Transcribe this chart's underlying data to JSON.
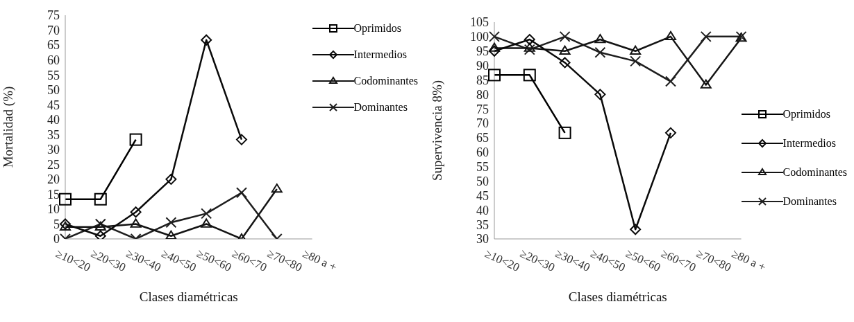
{
  "chart_data": [
    {
      "type": "line",
      "ylabel": "Mortalidad (%)",
      "xlabel": "Clases diamétricas",
      "categories": [
        "≥10<20",
        "≥20<30",
        "≥30<40",
        "≥40<50",
        "≥50<60",
        "≥60<70",
        "≥70<80",
        "≥80 a +"
      ],
      "ylim": [
        0,
        75
      ],
      "yticks": [
        0,
        5,
        10,
        15,
        20,
        25,
        30,
        35,
        40,
        45,
        50,
        55,
        60,
        65,
        70,
        75
      ],
      "grid": false,
      "legend": "top right",
      "line_style": "solid",
      "series": [
        {
          "name": "Oprimidos",
          "color": "#000000",
          "marker": "square",
          "values": [
            13.3,
            13.3,
            33.3,
            null,
            null,
            null,
            null,
            null
          ]
        },
        {
          "name": "Intermedios",
          "color": "#0a0a0a",
          "marker": "diamond",
          "values": [
            5,
            1,
            9,
            20,
            66.7,
            33.3,
            null,
            null
          ]
        },
        {
          "name": "Codominantes",
          "color": "#141414",
          "marker": "triangle",
          "values": [
            4,
            4,
            5,
            1,
            5,
            0,
            16.7,
            null
          ]
        },
        {
          "name": "Dominantes",
          "color": "#1e1e1e",
          "marker": "cross",
          "values": [
            0,
            5,
            0,
            5.5,
            8.5,
            15.5,
            0,
            null
          ]
        }
      ]
    },
    {
      "type": "line",
      "ylabel": "Supervivencia 8%)",
      "xlabel": "Clases diamétricas",
      "categories": [
        "≥10<20",
        "≥20<30",
        "≥30<40",
        "≥40<50",
        "≥50<60",
        "≥60<70",
        "≥70<80",
        "≥80 a +"
      ],
      "ylim": [
        30,
        105
      ],
      "yticks": [
        30,
        35,
        40,
        45,
        50,
        55,
        60,
        65,
        70,
        75,
        80,
        85,
        90,
        95,
        100,
        105
      ],
      "grid": false,
      "legend": "right",
      "line_style": "solid",
      "series": [
        {
          "name": "Oprimidos",
          "color": "#000000",
          "marker": "square",
          "values": [
            86.7,
            86.7,
            66.7,
            null,
            null,
            null,
            null,
            null
          ]
        },
        {
          "name": "Intermedios",
          "color": "#0a0a0a",
          "marker": "diamond",
          "values": [
            95,
            99,
            91,
            80,
            33.3,
            66.7,
            null,
            null
          ]
        },
        {
          "name": "Codominantes",
          "color": "#141414",
          "marker": "triangle",
          "values": [
            96,
            96,
            95,
            99,
            95,
            100,
            83.3,
            99.5
          ]
        },
        {
          "name": "Dominantes",
          "color": "#1e1e1e",
          "marker": "cross",
          "values": [
            100,
            95.5,
            100,
            94.5,
            91.5,
            84.5,
            100,
            100
          ]
        }
      ]
    }
  ]
}
